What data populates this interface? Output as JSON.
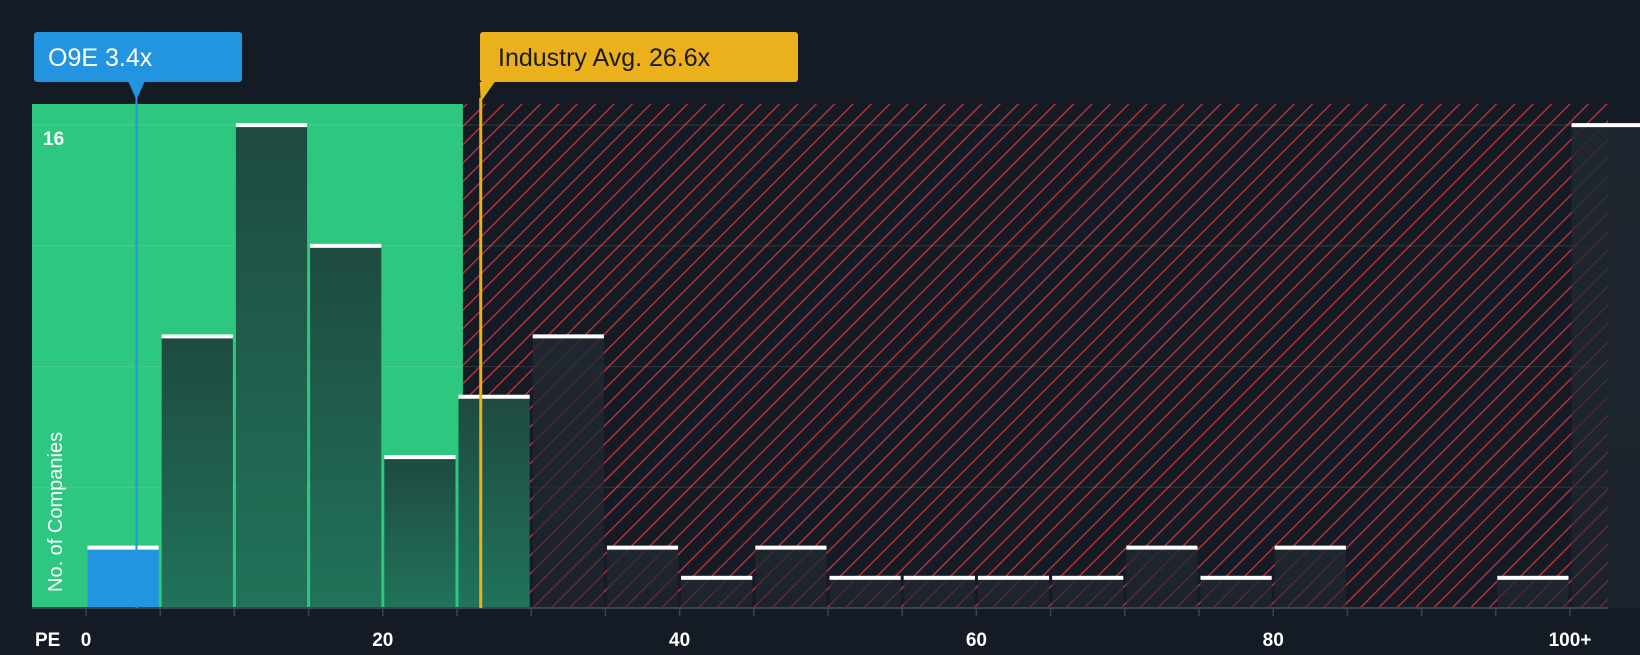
{
  "subject_badge": {
    "text": "O9E 3.4x",
    "value": 3.4,
    "color": "#2394e0"
  },
  "industry_badge": {
    "text": "Industry Avg. 26.6x",
    "value": 26.6,
    "color": "#eab11c"
  },
  "colors": {
    "background": "#151b24",
    "fair_zone": "#2ec780",
    "overvalued_hatch": "#c8333f",
    "bar": "#1f4d43",
    "subject_bar": "#2394e0",
    "bar_cap": "#ffffff"
  },
  "chart_data": {
    "type": "bar",
    "title": "",
    "xlabel": "PE",
    "ylabel": "No. of Companies",
    "bin_width": 5,
    "xlim": [
      0,
      103
    ],
    "ylim": [
      0,
      16.7
    ],
    "x_ticks": [
      {
        "value": 0,
        "label": "0"
      },
      {
        "value": 20,
        "label": "20"
      },
      {
        "value": 40,
        "label": "40"
      },
      {
        "value": 60,
        "label": "60"
      },
      {
        "value": 80,
        "label": "80"
      },
      {
        "value": 100,
        "label": "100+"
      }
    ],
    "y_ticks": [
      {
        "value": 16,
        "label": "16"
      }
    ],
    "y_gridlines": [
      4,
      8,
      12,
      16
    ],
    "fair_zone_max": 25.4,
    "bins": [
      {
        "start": 0,
        "value": 2,
        "highlight": true
      },
      {
        "start": 5,
        "value": 9
      },
      {
        "start": 10,
        "value": 16
      },
      {
        "start": 15,
        "value": 12
      },
      {
        "start": 20,
        "value": 5
      },
      {
        "start": 25,
        "value": 7
      },
      {
        "start": 30,
        "value": 9
      },
      {
        "start": 35,
        "value": 2
      },
      {
        "start": 40,
        "value": 1
      },
      {
        "start": 45,
        "value": 2
      },
      {
        "start": 50,
        "value": 1
      },
      {
        "start": 55,
        "value": 1
      },
      {
        "start": 60,
        "value": 1
      },
      {
        "start": 65,
        "value": 1
      },
      {
        "start": 70,
        "value": 2
      },
      {
        "start": 75,
        "value": 1
      },
      {
        "start": 80,
        "value": 2
      },
      {
        "start": 85,
        "value": 0
      },
      {
        "start": 90,
        "value": 0
      },
      {
        "start": 95,
        "value": 1
      },
      {
        "start": 100,
        "value": 16
      }
    ],
    "subject_value": 3.4,
    "industry_avg": 26.6
  }
}
